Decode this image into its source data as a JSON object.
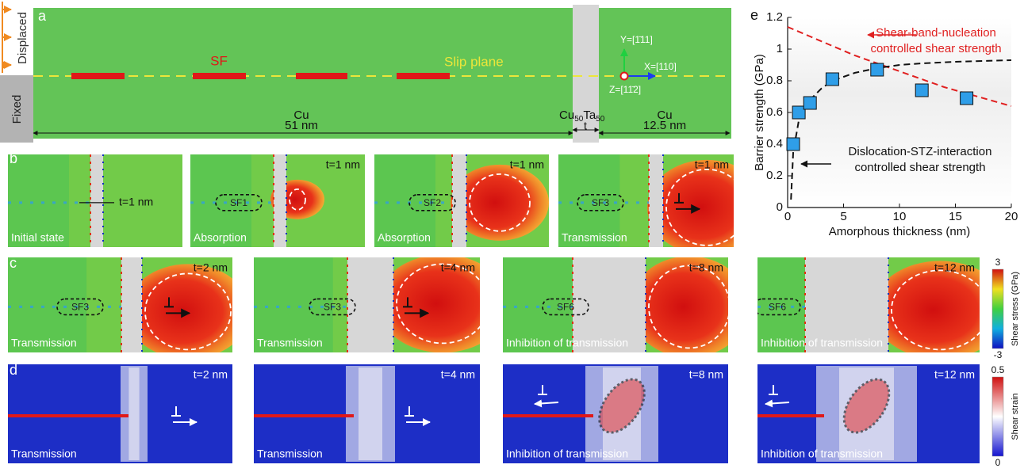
{
  "panel_a": {
    "label": "a",
    "displaced": "Displaced",
    "fixed": "Fixed",
    "sf": "SF",
    "slip_plane": "Slip plane",
    "cu_left": "Cu",
    "cu_left_size": "51 nm",
    "glass": [
      "Cu",
      "50",
      "Ta",
      "50"
    ],
    "glass_size": "t",
    "cu_right": "Cu",
    "cu_right_size": "12.5 nm",
    "axis_y": "Y=[1̄11]",
    "axis_x": "X=[110]",
    "axis_z": "Z=[11̄2]"
  },
  "panel_b": {
    "label": "b",
    "frames": [
      {
        "time": "t=1 nm",
        "caption": "Initial state"
      },
      {
        "time": "t=1 nm",
        "sf": "SF1",
        "caption": "Absorption"
      },
      {
        "time": "t=1 nm",
        "sf": "SF2",
        "caption": "Absorption"
      },
      {
        "time": "t=1 nm",
        "sf": "SF3",
        "caption": "Transmission"
      }
    ]
  },
  "panel_c": {
    "label": "c",
    "frames": [
      {
        "time": "t=2 nm",
        "sf": "SF3",
        "caption": "Transmission"
      },
      {
        "time": "t=4 nm",
        "sf": "SF3",
        "caption": "Transmission"
      },
      {
        "time": "t=8 nm",
        "sf": "SF6",
        "caption": "Inhibition of transmission"
      },
      {
        "time": "t=12 nm",
        "sf": "SF6",
        "caption": "Inhibition of transmission"
      }
    ],
    "colorbar": {
      "title": "Shear stress (GPa)",
      "max": 3,
      "min": -3
    }
  },
  "panel_d": {
    "label": "d",
    "frames": [
      {
        "time": "t=2 nm",
        "caption": "Transmission"
      },
      {
        "time": "t=4 nm",
        "caption": "Transmission"
      },
      {
        "time": "t=8 nm",
        "caption": "Inhibition of transmission"
      },
      {
        "time": "t=12 nm",
        "caption": "Inhibition of transmission"
      }
    ],
    "colorbar": {
      "title": "Shear strain",
      "max": 0.5,
      "min": 0
    }
  },
  "chart_data": {
    "type": "scatter",
    "label": "e",
    "x_label": "Amorphous thickness (nm)",
    "y_label": "Barrier strength (GPa)",
    "xlim": [
      0,
      20
    ],
    "ylim": [
      0,
      1.2
    ],
    "xticks": [
      0,
      5,
      10,
      15,
      20
    ],
    "yticks": [
      0,
      0.2,
      0.4,
      0.6,
      0.8,
      1,
      1.2
    ],
    "series": [
      {
        "color": "#2f9ee8",
        "x": [
          0.5,
          1,
          2,
          4,
          8,
          12,
          16
        ],
        "values": [
          0.4,
          0.6,
          0.66,
          0.81,
          0.87,
          0.74,
          0.69
        ]
      }
    ],
    "curves": [
      {
        "color": "#e02020",
        "x": [
          0,
          2,
          4,
          6,
          8,
          10,
          12,
          14,
          16,
          18,
          20
        ],
        "values": [
          1.14,
          1.08,
          1.02,
          0.96,
          0.91,
          0.86,
          0.81,
          0.76,
          0.72,
          0.68,
          0.64
        ]
      },
      {
        "color": "#111111",
        "x": [
          0.3,
          0.5,
          1,
          2,
          3,
          4,
          6,
          8,
          10,
          12,
          15,
          20
        ],
        "values": [
          0.05,
          0.35,
          0.55,
          0.68,
          0.75,
          0.8,
          0.85,
          0.88,
          0.9,
          0.91,
          0.92,
          0.93
        ]
      }
    ],
    "annotations": [
      {
        "lines": [
          "Shear-band-nucleation",
          "controlled shear strength"
        ],
        "color": "#e02020"
      },
      {
        "lines": [
          "Dislocation-STZ-interaction",
          "controlled shear strength"
        ],
        "color": "#111111"
      }
    ]
  }
}
